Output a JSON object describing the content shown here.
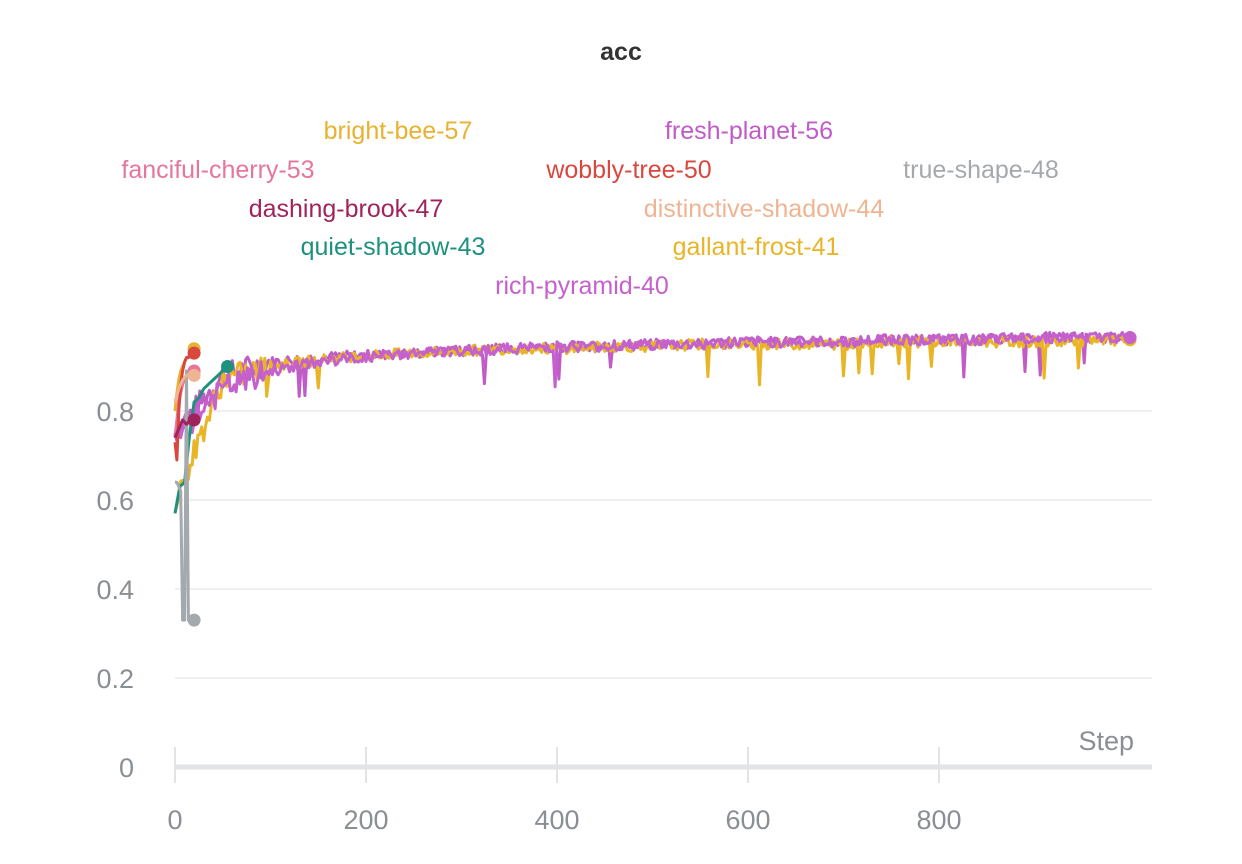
{
  "chart_data": {
    "type": "line",
    "title": "acc",
    "xlabel": "Step",
    "ylabel": "",
    "xlim": [
      0,
      1000
    ],
    "ylim": [
      0,
      1.0
    ],
    "x_ticks": [
      "0",
      "200",
      "400",
      "600",
      "800"
    ],
    "y_ticks": [
      "0",
      "0.2",
      "0.4",
      "0.6",
      "0.8"
    ],
    "grid": true,
    "legend_position": "top",
    "series": [
      {
        "name": "bright-bee-57",
        "color": "#e7b22f",
        "x": [
          0,
          2,
          4,
          6,
          8,
          10,
          12,
          14,
          16,
          18,
          20
        ],
        "y": [
          0.8,
          0.84,
          0.87,
          0.89,
          0.9,
          0.91,
          0.92,
          0.92,
          0.93,
          0.94,
          0.94
        ]
      },
      {
        "name": "fresh-planet-56",
        "color": "#c05bc8",
        "x": [
          0,
          50,
          100,
          150,
          200,
          250,
          300,
          350,
          400,
          450,
          500,
          550,
          600,
          650,
          700,
          750,
          800,
          850,
          900,
          950,
          1000
        ],
        "y": [
          0.75,
          0.88,
          0.91,
          0.92,
          0.925,
          0.93,
          0.935,
          0.94,
          0.945,
          0.945,
          0.95,
          0.95,
          0.955,
          0.955,
          0.955,
          0.96,
          0.96,
          0.96,
          0.965,
          0.965,
          0.965
        ]
      },
      {
        "name": "fanciful-cherry-53",
        "color": "#e6769b",
        "x": [
          0,
          4,
          8,
          12,
          16,
          20
        ],
        "y": [
          0.74,
          0.82,
          0.86,
          0.88,
          0.89,
          0.89
        ]
      },
      {
        "name": "wobbly-tree-50",
        "color": "#d9473f",
        "x": [
          0,
          2,
          4,
          6,
          8,
          10,
          12,
          14,
          16,
          18,
          20
        ],
        "y": [
          0.73,
          0.69,
          0.8,
          0.86,
          0.89,
          0.91,
          0.92,
          0.92,
          0.93,
          0.93,
          0.93
        ]
      },
      {
        "name": "true-shape-48",
        "color": "#a4a9ae",
        "x": [
          0,
          2,
          4,
          6,
          8,
          10,
          12,
          14,
          16,
          18,
          20
        ],
        "y": [
          0.64,
          0.64,
          0.63,
          0.62,
          0.33,
          0.33,
          0.89,
          0.33,
          0.33,
          0.33,
          0.33
        ]
      },
      {
        "name": "dashing-brook-47",
        "color": "#a0245c",
        "x": [
          0,
          4,
          8,
          12,
          16,
          20
        ],
        "y": [
          0.74,
          0.76,
          0.78,
          0.77,
          0.78,
          0.78
        ]
      },
      {
        "name": "distinctive-shadow-44",
        "color": "#efb492",
        "x": [
          0,
          4,
          8,
          12,
          16,
          20
        ],
        "y": [
          0.82,
          0.85,
          0.87,
          0.88,
          0.88,
          0.88
        ]
      },
      {
        "name": "quiet-shadow-43",
        "color": "#1e917e",
        "x": [
          0,
          5,
          10,
          15,
          20,
          25,
          30,
          35,
          40,
          45,
          50,
          55
        ],
        "y": [
          0.57,
          0.63,
          0.64,
          0.74,
          0.82,
          0.83,
          0.85,
          0.86,
          0.87,
          0.88,
          0.89,
          0.9
        ]
      },
      {
        "name": "gallant-frost-41",
        "color": "#e9b526",
        "x": [
          0,
          50,
          100,
          150,
          200,
          250,
          300,
          350,
          400,
          450,
          500,
          550,
          600,
          650,
          700,
          750,
          800,
          850,
          900,
          950,
          1000
        ],
        "y": [
          0.6,
          0.87,
          0.9,
          0.915,
          0.925,
          0.93,
          0.935,
          0.94,
          0.94,
          0.945,
          0.945,
          0.95,
          0.95,
          0.95,
          0.95,
          0.955,
          0.955,
          0.955,
          0.955,
          0.955,
          0.96
        ]
      },
      {
        "name": "rich-pyramid-40",
        "color": "#c461cc",
        "x": [
          0,
          50,
          100,
          150,
          200,
          250,
          300,
          350,
          400,
          450,
          500,
          550,
          600,
          650,
          700,
          750,
          800,
          850,
          900,
          950,
          1000
        ],
        "y": [
          0.74,
          0.85,
          0.89,
          0.91,
          0.92,
          0.93,
          0.935,
          0.94,
          0.945,
          0.945,
          0.95,
          0.95,
          0.955,
          0.955,
          0.955,
          0.96,
          0.96,
          0.96,
          0.965,
          0.965,
          0.965
        ]
      }
    ]
  }
}
